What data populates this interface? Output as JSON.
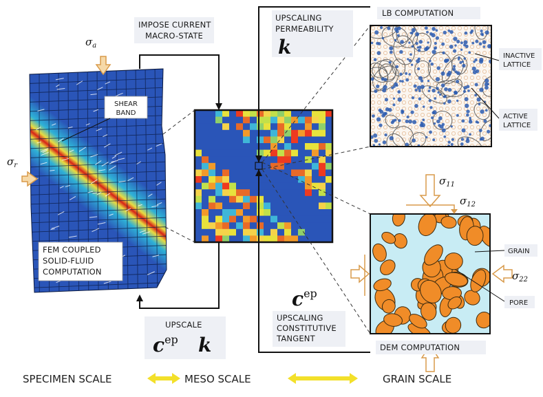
{
  "labels": {
    "impose": [
      "IMPOSE CURRENT",
      "MACRO-STATE"
    ],
    "upscaling_perm": [
      "UPSCALING",
      "PERMEABILITY"
    ],
    "perm_symbol": "k",
    "lb_computation": "LB COMPUTATION",
    "inactive_lattice": [
      "INACTIVE",
      "LATTICE"
    ],
    "active_lattice": [
      "ACTIVE",
      "LATTICE"
    ],
    "shear_band": [
      "SHEAR",
      "BAND"
    ],
    "fem": [
      "FEM COUPLED",
      "SOLID-FLUID",
      "COMPUTATION"
    ],
    "upscale": "UPSCALE",
    "cep_symbol": "c",
    "cep_sup": "ep",
    "k_symbol": "k",
    "upscaling_tangent": [
      "UPSCALING",
      "CONSTITUTIVE",
      "TANGENT"
    ],
    "grain": "GRAIN",
    "pore": "PORE",
    "dem_computation": "DEM COMPUTATION"
  },
  "stress": {
    "sigma_a": "a",
    "sigma_r": "r",
    "sigma_11": "11",
    "sigma_12": "12",
    "sigma_22": "22",
    "sigma": "σ"
  },
  "scales": {
    "specimen": "SPECIMEN SCALE",
    "meso": "MESO SCALE",
    "grain": "GRAIN SCALE"
  },
  "colors": {
    "field_blue": "#2a55b8",
    "shear_red": "#e02010",
    "grain_orange": "#f08c28",
    "pore_blue": "#c8ecf4",
    "lattice_blue": "#2b5cb0",
    "arrow_yellow": "#f3e02a",
    "stress_arrow": "#e3b77a"
  }
}
